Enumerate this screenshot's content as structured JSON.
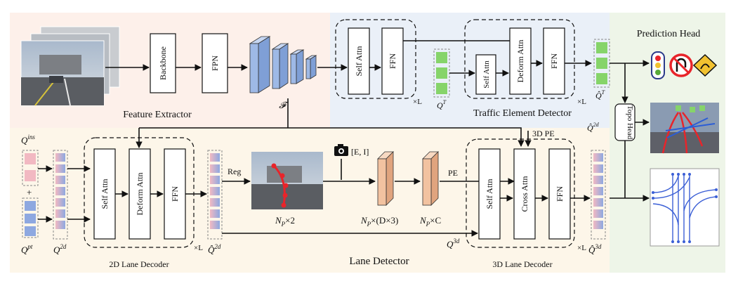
{
  "sections": {
    "feature_extractor": "Feature Extractor",
    "traffic_element_detector": "Traffic Element Detector",
    "prediction_head": "Prediction Head",
    "lane_detector": "Lane Detector",
    "lane_decoder_2d": "2D Lane Decoder",
    "lane_decoder_3d": "3D Lane Decoder"
  },
  "blocks": {
    "backbone": "Backbone",
    "fpn": "FPN",
    "self_attn": "Self Attn",
    "ffn": "FFN",
    "deform_attn": "Deform Attn",
    "cross_attn": "Cross Attn",
    "topo_head": "Topo Head"
  },
  "labels": {
    "feature_map": "𝓕",
    "repeat": "×L",
    "q_t": "Q",
    "q_t_sup": "T",
    "q_t_hat_sup": "T",
    "q_ins": "Q",
    "q_ins_sup": "ins",
    "q_pt": "Q",
    "q_pt_sup": "pt",
    "q_2d": "Q",
    "q_2d_sup": "2d",
    "q_3d": "Q",
    "q_3d_sup": "3d",
    "plus": "+",
    "reg": "Reg",
    "cam_params": "[E, I]",
    "pe": "PE",
    "pe_3d": "3D PE",
    "np_2": "N",
    "np_2_sub": "P",
    "np_2_tail": "×2",
    "np_d3": "N",
    "np_d3_sub": "P",
    "np_d3_tail": "×(D×3)",
    "np_c": "N",
    "np_c_sub": "P",
    "np_c_tail": "×C"
  },
  "colors": {
    "feature_bg": "#fdf0ea",
    "traffic_bg": "#eaf0f8",
    "lane_bg": "#fdf6e9",
    "pred_bg": "#eef5e8",
    "query_green": "#86d46a",
    "query_pink": "#f2b9c2",
    "query_blue": "#8ea8e0",
    "feature_blue": "#9eb9e6",
    "proj_orange": "#f2c2a0",
    "lane_red": "#e8242a"
  },
  "icons": [
    "camera-icon",
    "traffic-light-icon",
    "no-u-turn-sign-icon",
    "warning-sign-icon"
  ]
}
